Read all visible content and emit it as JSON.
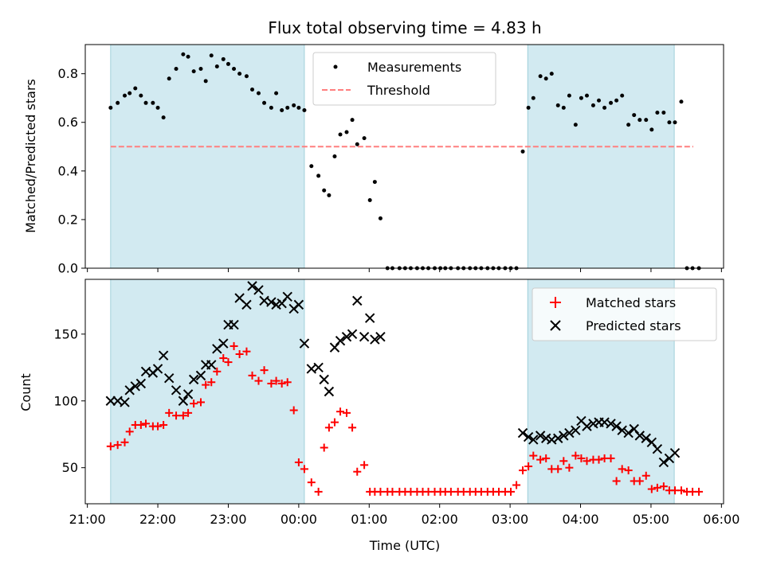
{
  "chart_data": {
    "type": "scatter",
    "title": "Flux total observing time = 4.83 h",
    "xlabel": "Time (UTC)",
    "x_ticks": [
      "21:00",
      "22:00",
      "23:00",
      "00:00",
      "01:00",
      "02:00",
      "03:00",
      "04:00",
      "05:00",
      "06:00"
    ],
    "xlim_hours": [
      20.97,
      30.03
    ],
    "shaded_intervals_hours": [
      [
        21.33,
        24.08
      ],
      [
        27.25,
        29.33
      ]
    ],
    "colors": {
      "shade": "#add8e6",
      "matched": "#ff0000",
      "predicted": "#000000",
      "threshold": "#ff7f7f"
    },
    "panels": [
      {
        "ylabel": "Matched/Predicted stars",
        "ylim": [
          0,
          0.92
        ],
        "yticks": [
          "0.0",
          "0.2",
          "0.4",
          "0.6",
          "0.8"
        ],
        "legend": {
          "position": "upper center",
          "entries": [
            "Measurements",
            "Threshold"
          ]
        },
        "threshold": {
          "value": 0.5,
          "x_range_hours": [
            21.33,
            29.6
          ]
        },
        "series": [
          {
            "name": "Measurements",
            "marker": "dot",
            "x": [
              21.33,
              21.43,
              21.53,
              21.6,
              21.68,
              21.76,
              21.83,
              21.93,
              22.0,
              22.08,
              22.16,
              22.26,
              22.36,
              22.43,
              22.51,
              22.61,
              22.68,
              22.76,
              22.84,
              22.93,
              23.0,
              23.08,
              23.16,
              23.26,
              23.34,
              23.43,
              23.51,
              23.61,
              23.68,
              23.76,
              23.84,
              23.93,
              24.0,
              24.08,
              24.18,
              24.28,
              24.36,
              24.43,
              24.51,
              24.59,
              24.68,
              24.76,
              24.83,
              24.93,
              25.01,
              25.08,
              25.16,
              25.26,
              25.33,
              25.43,
              25.51,
              25.59,
              25.68,
              25.76,
              25.84,
              25.93,
              26.01,
              26.08,
              26.16,
              26.26,
              26.34,
              26.43,
              26.51,
              26.59,
              26.68,
              26.76,
              26.84,
              26.93,
              27.01,
              27.09,
              27.18,
              27.26,
              27.33,
              27.43,
              27.51,
              27.59,
              27.68,
              27.76,
              27.84,
              27.93,
              28.01,
              28.09,
              28.18,
              28.26,
              28.34,
              28.43,
              28.51,
              28.59,
              28.68,
              28.76,
              28.84,
              28.93,
              29.01,
              29.09,
              29.18,
              29.26,
              29.34,
              29.43,
              29.51,
              29.59,
              29.68
            ],
            "y": [
              0.66,
              0.68,
              0.71,
              0.72,
              0.74,
              0.71,
              0.68,
              0.68,
              0.66,
              0.62,
              0.78,
              0.82,
              0.88,
              0.87,
              0.81,
              0.82,
              0.77,
              0.875,
              0.83,
              0.86,
              0.84,
              0.82,
              0.8,
              0.79,
              0.735,
              0.72,
              0.68,
              0.66,
              0.72,
              0.65,
              0.66,
              0.67,
              0.66,
              0.65,
              0.42,
              0.38,
              0.32,
              0.3,
              0.46,
              0.55,
              0.56,
              0.61,
              0.51,
              0.535,
              0.28,
              0.355,
              0.205,
              0,
              0,
              0,
              0,
              0,
              0,
              0,
              0,
              0,
              0,
              0,
              0,
              0,
              0,
              0,
              0,
              0,
              0,
              0,
              0,
              0,
              0,
              0,
              0.48,
              0.66,
              0.7,
              0.79,
              0.78,
              0.8,
              0.67,
              0.66,
              0.71,
              0.59,
              0.7,
              0.71,
              0.67,
              0.69,
              0.66,
              0.68,
              0.69,
              0.71,
              0.59,
              0.63,
              0.61,
              0.61,
              0.57,
              0.64,
              0.64,
              0.6,
              0.6,
              0.685,
              0,
              0,
              0
            ]
          },
          {
            "name": "Threshold",
            "style": "dashed",
            "x": [
              21.33,
              29.6
            ],
            "y": [
              0.5,
              0.5
            ]
          }
        ]
      },
      {
        "ylabel": "Count",
        "ylim": [
          23,
          191
        ],
        "yticks": [
          "50",
          "100",
          "150"
        ],
        "legend": {
          "position": "upper right",
          "entries": [
            "Matched stars",
            "Predicted stars"
          ]
        },
        "series": [
          {
            "name": "Matched stars",
            "marker": "plus",
            "x": [
              21.33,
              21.43,
              21.53,
              21.6,
              21.68,
              21.76,
              21.83,
              21.93,
              22.0,
              22.08,
              22.16,
              22.26,
              22.36,
              22.43,
              22.51,
              22.61,
              22.68,
              22.76,
              22.84,
              22.93,
              23.0,
              23.08,
              23.16,
              23.26,
              23.34,
              23.43,
              23.51,
              23.61,
              23.68,
              23.76,
              23.84,
              23.93,
              24.0,
              24.08,
              24.18,
              24.28,
              24.36,
              24.43,
              24.51,
              24.59,
              24.68,
              24.76,
              24.83,
              24.93,
              25.01,
              25.08,
              25.16,
              25.26,
              25.33,
              25.43,
              25.51,
              25.59,
              25.68,
              25.76,
              25.84,
              25.93,
              26.01,
              26.08,
              26.16,
              26.26,
              26.34,
              26.43,
              26.51,
              26.59,
              26.68,
              26.76,
              26.84,
              26.93,
              27.01,
              27.09,
              27.18,
              27.26,
              27.33,
              27.43,
              27.51,
              27.59,
              27.68,
              27.76,
              27.84,
              27.93,
              28.01,
              28.09,
              28.18,
              28.26,
              28.34,
              28.43,
              28.51,
              28.59,
              28.68,
              28.76,
              28.84,
              28.93,
              29.01,
              29.09,
              29.18,
              29.26,
              29.34,
              29.43,
              29.51,
              29.59,
              29.68
            ],
            "y": [
              66,
              67,
              69,
              77,
              82,
              82,
              83,
              81,
              81,
              82,
              91,
              89,
              89,
              91,
              98,
              99,
              112,
              114,
              122,
              132,
              129,
              141,
              135,
              137,
              119,
              115,
              123,
              113,
              115,
              113,
              114,
              93,
              54,
              49,
              39,
              32,
              65,
              80,
              84,
              92,
              91,
              80,
              47,
              52,
              32,
              32,
              32,
              32,
              32,
              32,
              32,
              32,
              32,
              32,
              32,
              32,
              32,
              32,
              32,
              32,
              32,
              32,
              32,
              32,
              32,
              32,
              32,
              32,
              32,
              37,
              48,
              51,
              59,
              56,
              57,
              49,
              49,
              55,
              50,
              59,
              57,
              55,
              56,
              56,
              57,
              57,
              40,
              49,
              48,
              40,
              40,
              44,
              34,
              35,
              36,
              33,
              33,
              33,
              32,
              32,
              32
            ]
          },
          {
            "name": "Predicted stars",
            "marker": "x",
            "x": [
              21.33,
              21.43,
              21.53,
              21.6,
              21.68,
              21.76,
              21.83,
              21.93,
              22.0,
              22.08,
              22.16,
              22.26,
              22.36,
              22.43,
              22.51,
              22.61,
              22.68,
              22.76,
              22.84,
              22.93,
              23.0,
              23.08,
              23.16,
              23.26,
              23.34,
              23.43,
              23.51,
              23.61,
              23.68,
              23.76,
              23.84,
              23.93,
              24.0,
              24.08,
              24.18,
              24.28,
              24.36,
              24.43,
              24.51,
              24.59,
              24.68,
              24.76,
              24.83,
              24.93,
              25.01,
              25.08,
              25.16,
              27.18,
              27.26,
              27.33,
              27.43,
              27.51,
              27.59,
              27.68,
              27.76,
              27.84,
              27.93,
              28.01,
              28.09,
              28.18,
              28.26,
              28.34,
              28.43,
              28.51,
              28.59,
              28.68,
              28.76,
              28.84,
              28.93,
              29.01,
              29.09,
              29.18,
              29.26,
              29.34
            ],
            "y": [
              100,
              100,
              99,
              108,
              111,
              113,
              122,
              121,
              124,
              134,
              117,
              108,
              100,
              105,
              116,
              119,
              127,
              127,
              139,
              143,
              157,
              157,
              177,
              172,
              186,
              183,
              175,
              174,
              172,
              173,
              178,
              169,
              172,
              143,
              124,
              125,
              116,
              107,
              140,
              145,
              148,
              150,
              175,
              148,
              162,
              146,
              148,
              76,
              73,
              71,
              74,
              72,
              71,
              72,
              74,
              76,
              78,
              85,
              81,
              83,
              84,
              84,
              83,
              81,
              78,
              76,
              79,
              74,
              72,
              69,
              64,
              54,
              57,
              61
            ]
          }
        ]
      }
    ]
  }
}
